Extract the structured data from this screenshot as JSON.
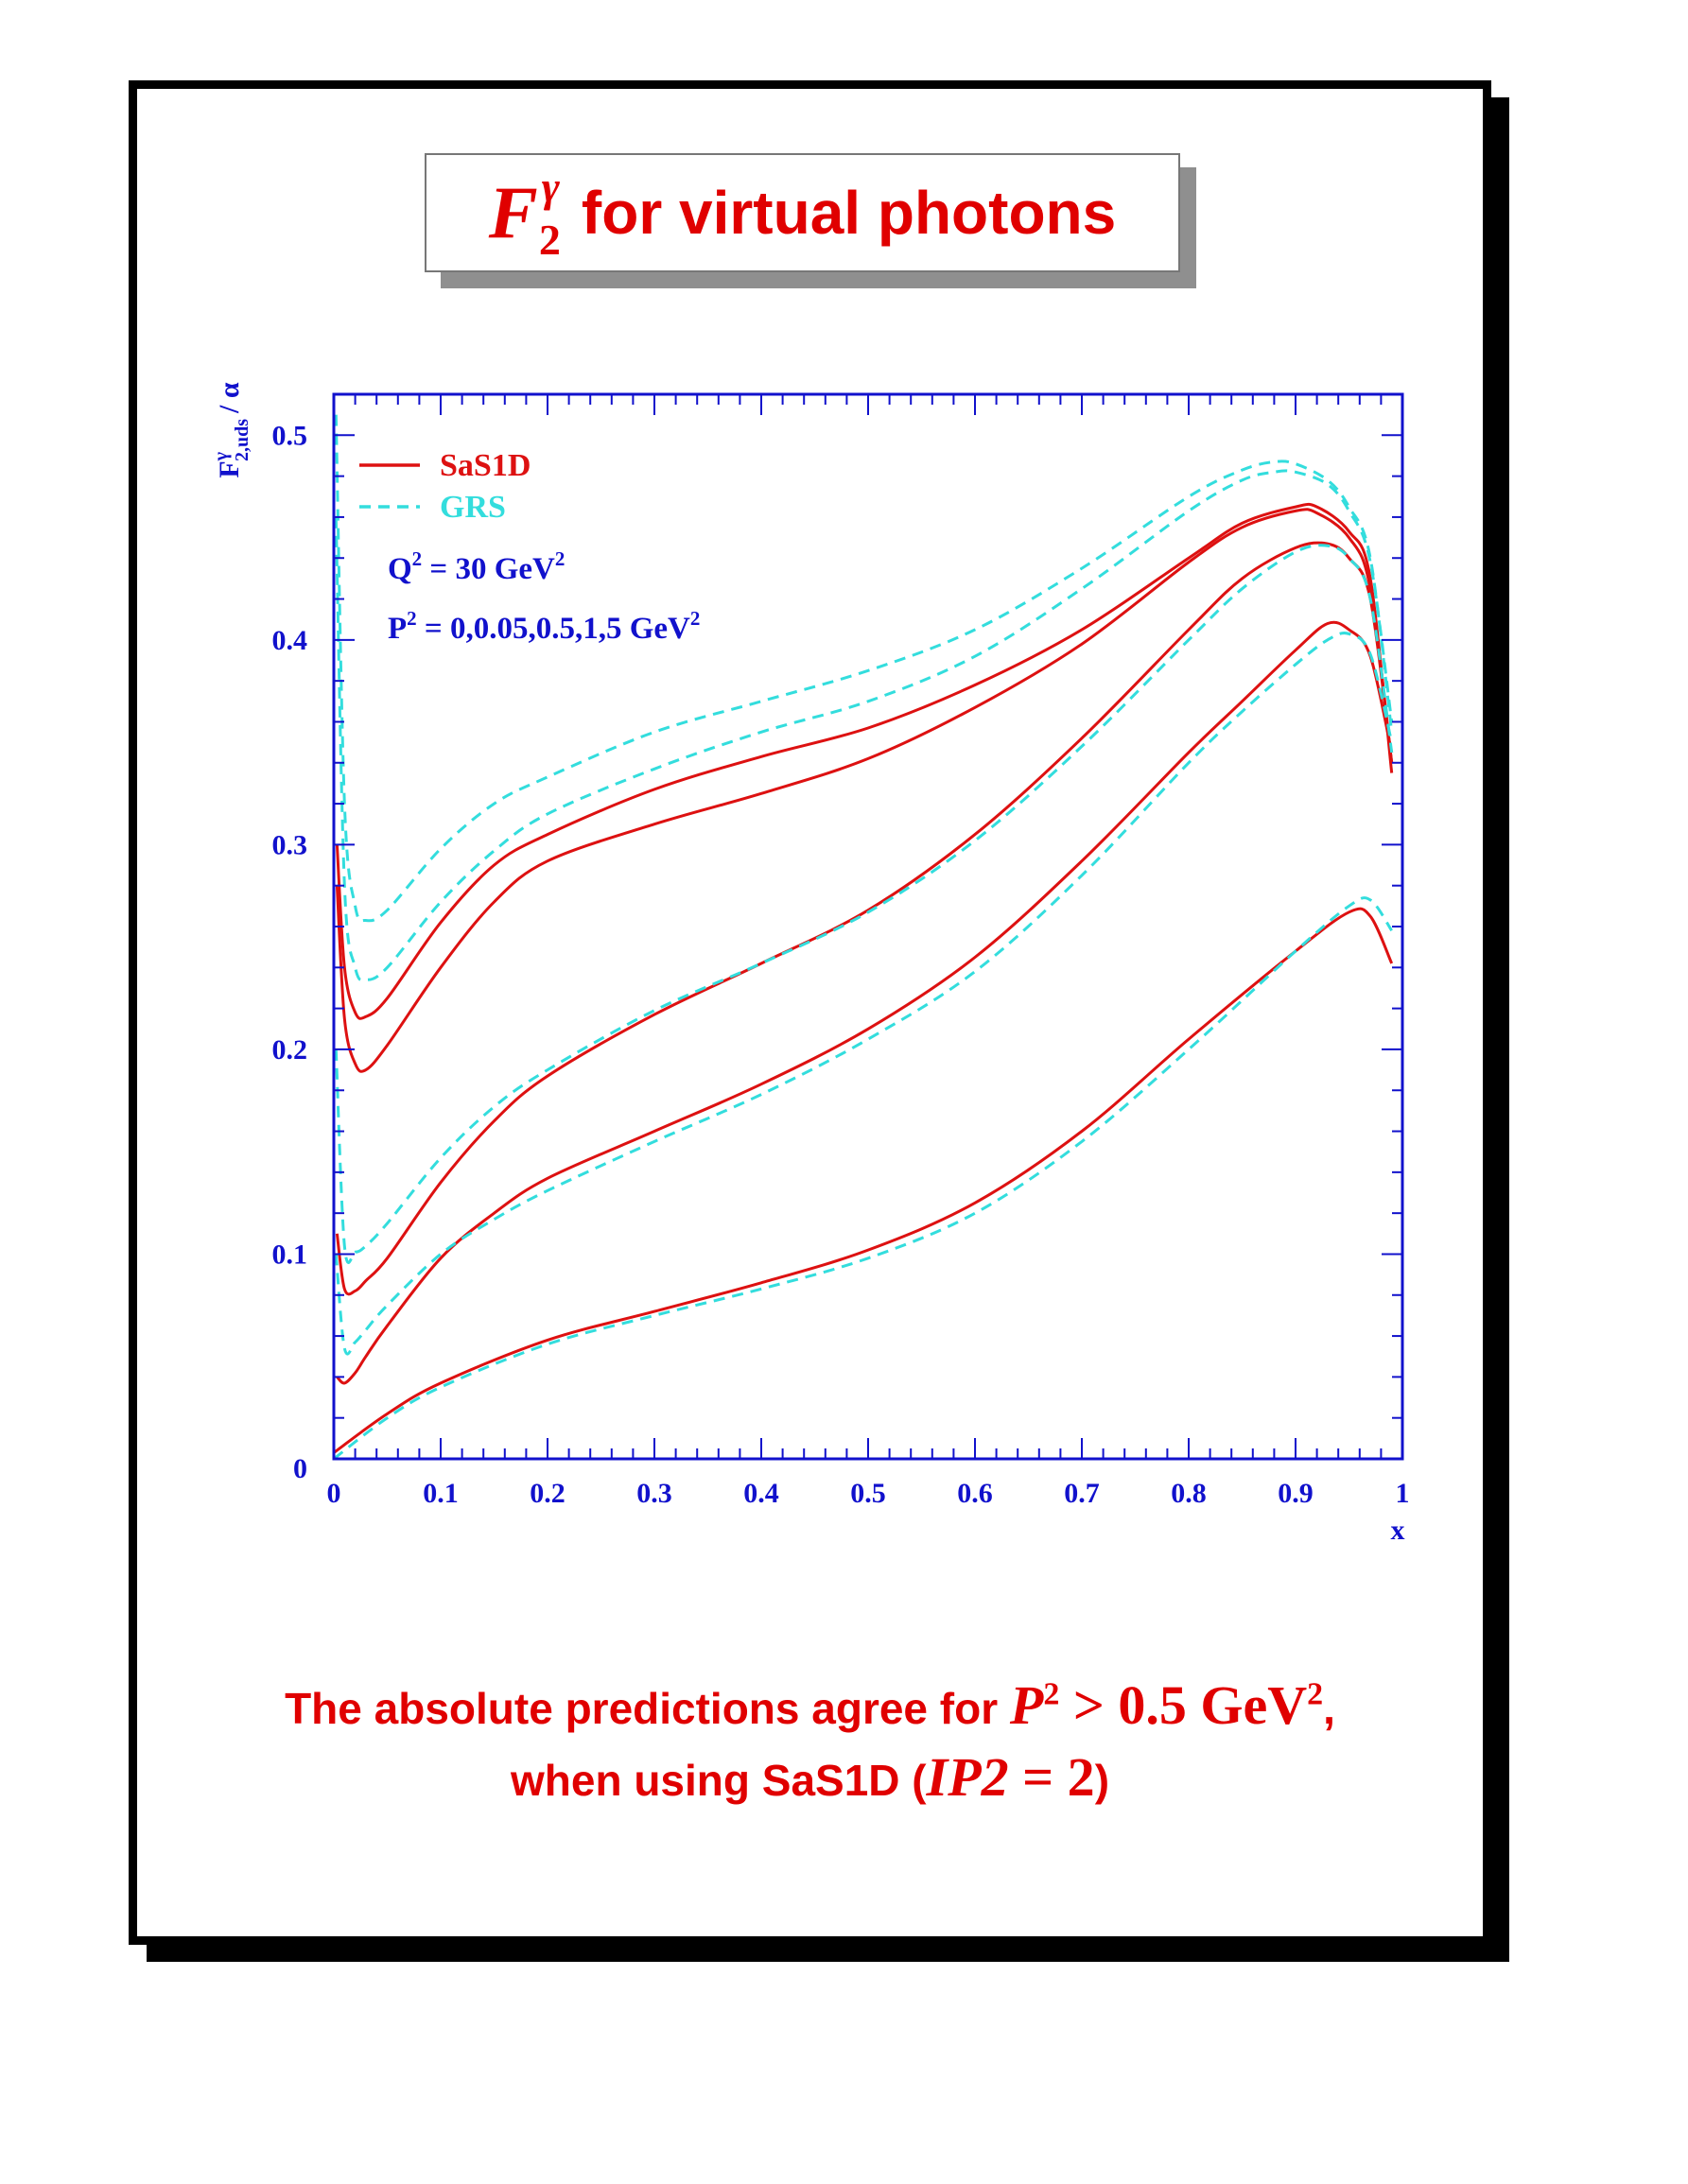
{
  "title": {
    "symbol": "F",
    "symbol_sup": "γ",
    "symbol_sub": "2",
    "text": "for virtual photons"
  },
  "chart_data": {
    "type": "line",
    "xlabel": "x",
    "ylabel": {
      "main": "F",
      "sup": "γ",
      "sub": "2,uds",
      "tail": "/ α"
    },
    "xlim": [
      0,
      1
    ],
    "ylim": [
      0,
      0.52
    ],
    "xticks": [
      "0",
      "0.1",
      "0.2",
      "0.3",
      "0.4",
      "0.5",
      "0.6",
      "0.7",
      "0.8",
      "0.9",
      "1"
    ],
    "yticks": [
      "0",
      "0.1",
      "0.2",
      "0.3",
      "0.4",
      "0.5"
    ],
    "grid": false,
    "legend": {
      "position": "top-left",
      "entries": [
        {
          "label": "SaS1D",
          "color": "#dd1111",
          "style": "solid"
        },
        {
          "label": "GRS",
          "color": "#33dddd",
          "style": "dashed"
        }
      ]
    },
    "annotations": [
      {
        "text": "Q",
        "sup": "2",
        "rest": " = 30 GeV",
        "sup2": "2"
      },
      {
        "text": "P",
        "sup": "2",
        "rest": " = 0,0.05,0.5,1,5 GeV",
        "sup2": "2"
      }
    ],
    "series": [
      {
        "group": "SaS1D",
        "color": "#dd1111",
        "style": "solid",
        "x": [
          0.003,
          0.01,
          0.02,
          0.03,
          0.05,
          0.1,
          0.15,
          0.2,
          0.3,
          0.4,
          0.5,
          0.6,
          0.7,
          0.8,
          0.85,
          0.9,
          0.92,
          0.95,
          0.97,
          0.99
        ],
        "y": [
          0.3,
          0.24,
          0.218,
          0.216,
          0.225,
          0.262,
          0.29,
          0.305,
          0.327,
          0.343,
          0.357,
          0.378,
          0.405,
          0.44,
          0.457,
          0.465,
          0.465,
          0.453,
          0.43,
          0.335
        ]
      },
      {
        "group": "SaS1D",
        "color": "#dd1111",
        "style": "solid",
        "x": [
          0.003,
          0.01,
          0.02,
          0.03,
          0.05,
          0.1,
          0.15,
          0.2,
          0.3,
          0.4,
          0.5,
          0.6,
          0.7,
          0.8,
          0.85,
          0.9,
          0.92,
          0.95,
          0.97,
          0.99
        ],
        "y": [
          0.28,
          0.215,
          0.193,
          0.19,
          0.202,
          0.24,
          0.272,
          0.292,
          0.31,
          0.325,
          0.342,
          0.367,
          0.398,
          0.438,
          0.455,
          0.463,
          0.462,
          0.45,
          0.425,
          0.34
        ]
      },
      {
        "group": "SaS1D",
        "color": "#dd1111",
        "style": "solid",
        "x": [
          0.003,
          0.01,
          0.02,
          0.03,
          0.05,
          0.1,
          0.15,
          0.2,
          0.3,
          0.4,
          0.5,
          0.6,
          0.7,
          0.8,
          0.85,
          0.9,
          0.93,
          0.95,
          0.97,
          0.99
        ],
        "y": [
          0.11,
          0.083,
          0.082,
          0.087,
          0.098,
          0.135,
          0.165,
          0.187,
          0.217,
          0.242,
          0.268,
          0.305,
          0.352,
          0.405,
          0.43,
          0.445,
          0.447,
          0.44,
          0.42,
          0.34
        ]
      },
      {
        "group": "SaS1D",
        "color": "#dd1111",
        "style": "solid",
        "x": [
          0.003,
          0.01,
          0.02,
          0.03,
          0.05,
          0.1,
          0.15,
          0.2,
          0.3,
          0.4,
          0.5,
          0.6,
          0.7,
          0.8,
          0.85,
          0.9,
          0.93,
          0.95,
          0.97,
          0.99
        ],
        "y": [
          0.04,
          0.037,
          0.042,
          0.05,
          0.065,
          0.098,
          0.12,
          0.137,
          0.16,
          0.183,
          0.21,
          0.245,
          0.292,
          0.345,
          0.37,
          0.395,
          0.408,
          0.405,
          0.392,
          0.345
        ]
      },
      {
        "group": "SaS1D",
        "color": "#dd1111",
        "style": "solid",
        "x": [
          0.0,
          0.05,
          0.1,
          0.2,
          0.3,
          0.4,
          0.5,
          0.6,
          0.7,
          0.8,
          0.9,
          0.95,
          0.97,
          0.99
        ],
        "y": [
          0.003,
          0.022,
          0.037,
          0.058,
          0.072,
          0.086,
          0.102,
          0.125,
          0.16,
          0.205,
          0.248,
          0.267,
          0.265,
          0.242
        ]
      },
      {
        "group": "GRS",
        "color": "#33dddd",
        "style": "dashed",
        "x": [
          0.002,
          0.01,
          0.02,
          0.03,
          0.05,
          0.1,
          0.15,
          0.2,
          0.3,
          0.4,
          0.5,
          0.6,
          0.7,
          0.8,
          0.85,
          0.88,
          0.9,
          0.93,
          0.95,
          0.97,
          0.99
        ],
        "y": [
          0.51,
          0.32,
          0.27,
          0.263,
          0.268,
          0.298,
          0.32,
          0.333,
          0.355,
          0.37,
          0.385,
          0.405,
          0.435,
          0.47,
          0.483,
          0.487,
          0.486,
          0.478,
          0.465,
          0.44,
          0.355
        ]
      },
      {
        "group": "GRS",
        "color": "#33dddd",
        "style": "dashed",
        "x": [
          0.002,
          0.01,
          0.02,
          0.03,
          0.05,
          0.1,
          0.15,
          0.2,
          0.3,
          0.4,
          0.5,
          0.6,
          0.7,
          0.8,
          0.85,
          0.88,
          0.9,
          0.93,
          0.95,
          0.97,
          0.99
        ],
        "y": [
          0.46,
          0.28,
          0.24,
          0.234,
          0.24,
          0.272,
          0.297,
          0.315,
          0.337,
          0.355,
          0.37,
          0.392,
          0.425,
          0.463,
          0.478,
          0.482,
          0.482,
          0.476,
          0.463,
          0.438,
          0.36
        ]
      },
      {
        "group": "GRS",
        "color": "#33dddd",
        "style": "dashed",
        "x": [
          0.002,
          0.01,
          0.02,
          0.03,
          0.05,
          0.1,
          0.15,
          0.2,
          0.3,
          0.4,
          0.5,
          0.6,
          0.7,
          0.8,
          0.85,
          0.9,
          0.93,
          0.95,
          0.97,
          0.99
        ],
        "y": [
          0.2,
          0.104,
          0.101,
          0.104,
          0.115,
          0.147,
          0.172,
          0.19,
          0.219,
          0.242,
          0.267,
          0.302,
          0.348,
          0.4,
          0.425,
          0.443,
          0.446,
          0.44,
          0.42,
          0.345
        ]
      },
      {
        "group": "GRS",
        "color": "#33dddd",
        "style": "dashed",
        "x": [
          0.002,
          0.01,
          0.02,
          0.03,
          0.05,
          0.1,
          0.15,
          0.2,
          0.3,
          0.4,
          0.5,
          0.6,
          0.7,
          0.8,
          0.85,
          0.9,
          0.93,
          0.95,
          0.97,
          0.99
        ],
        "y": [
          0.1,
          0.054,
          0.057,
          0.063,
          0.075,
          0.1,
          0.117,
          0.131,
          0.155,
          0.178,
          0.205,
          0.238,
          0.285,
          0.34,
          0.365,
          0.388,
          0.4,
          0.403,
          0.393,
          0.35
        ]
      },
      {
        "group": "GRS",
        "color": "#33dddd",
        "style": "dashed",
        "x": [
          0.0,
          0.05,
          0.1,
          0.2,
          0.3,
          0.4,
          0.5,
          0.6,
          0.7,
          0.8,
          0.9,
          0.95,
          0.97,
          0.99
        ],
        "y": [
          0.0,
          0.02,
          0.035,
          0.056,
          0.07,
          0.083,
          0.098,
          0.12,
          0.155,
          0.2,
          0.248,
          0.27,
          0.273,
          0.258
        ]
      }
    ]
  },
  "caption": {
    "line1_text": "The absolute predictions agree for ",
    "line1_math_P": "P",
    "line1_math_sup": "2",
    "line1_math_rest": " > 0.5 GeV",
    "line1_math_sup2": "2",
    "line1_end": ",",
    "line2_text": "when using SaS1D (",
    "line2_math": "IP2",
    "line2_math_rest": " = 2",
    "line2_end": ")"
  },
  "colors": {
    "accent": "#e00000",
    "axis": "#1111cc",
    "sas1d": "#dd1111",
    "grs": "#33dddd"
  }
}
